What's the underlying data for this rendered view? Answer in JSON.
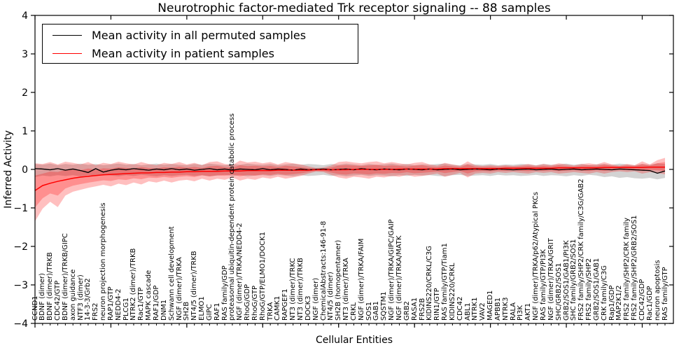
{
  "title": "Neurotrophic factor-mediated Trk receptor signaling -- 88 samples",
  "axes": {
    "xlabel": "Cellular Entities",
    "ylabel": "Inferred Activity",
    "ytick_labels": [
      "4",
      "3",
      "2",
      "1",
      "0",
      "−1",
      "−2",
      "−3",
      "−4"
    ],
    "ytick_values": [
      4,
      3,
      2,
      1,
      0,
      -1,
      -2,
      -3,
      -4
    ],
    "ylim": [
      -4,
      4
    ]
  },
  "legend": [
    {
      "label": "Mean activity in all permuted samples",
      "color": "#000000"
    },
    {
      "label": "Mean activity in patient samples",
      "color": "#ff0000"
    }
  ],
  "colors": {
    "permuted_line": "#000000",
    "patient_line": "#ff0000",
    "permuted_band": "#c8c8c8",
    "patient_band": "#ff0000",
    "frame": "#000000"
  },
  "chart_data": {
    "type": "line",
    "title": "Neurotrophic factor-mediated Trk receptor signaling -- 88 samples",
    "xlabel": "Cellular Entities",
    "ylabel": "Inferred Activity",
    "ylim": [
      -4,
      4
    ],
    "legend_position": "upper left",
    "grid": false,
    "categories": [
      "CCND1",
      "BDNF (dimer)",
      "BDNF (dimer)/TRKB",
      "CDC42/GTP",
      "BDNF (dimer)/TRKB/GIPC",
      "axon guidance",
      "NTF3 (dimer)",
      "14-3-3/Grb2",
      "FRS2",
      "neuron projection morphogenesis",
      "RAP1/GTP",
      "NEDD4-2",
      "PLCG1",
      "NTRK2 (dimer)/TRKB",
      "Rac1/GTP",
      "MAPK cascade",
      "RAF1/GDP",
      "DNM1",
      "Schwann cell development",
      "NGF (dimer)/TRKA",
      "SH2B",
      "NT4/5 (dimer)/TRKB",
      "ELMO1",
      "GIPC",
      "RAF1",
      "RAS family/GDP",
      "proteasomal ubiquitin-dependent protein catabolic process",
      "NGF (dimer)/TRKA/NEDD4-2",
      "RhoG/GDP",
      "RhoG/GTP",
      "RhoG/GTP/ELMO1/DOCK1",
      "TRKA",
      "CAMK1",
      "RAPGEF1",
      "NT3 (dimer)/TRKC",
      "NT3 (dimer)/TRKB",
      "DOCK3",
      "NGF (dimer)",
      "ChemicalAbstracts:146-91-8",
      "NT4/5 (dimer)",
      "SH2B (homopentamer)",
      "NT3 (dimer)/TRKA",
      "CRKL",
      "NGF (dimer)/TRKA/FAIM",
      "SOS1",
      "GAB1",
      "SQSTM1",
      "NGF (dimer)/TRKA/GIPC/GAIP",
      "NGF (dimer)/TRKA/MATK",
      "GRB2",
      "RASA1",
      "FRS2B",
      "KIDINS220/CRKL/C3G",
      "RIN1/GTP",
      "RAS family/GTP/Tiam1",
      "KIDINS220/CRKL",
      "CDC42",
      "ABL1",
      "NTRK1",
      "VAV2",
      "MAGED1",
      "APBB1",
      "NTRK3",
      "RALA",
      "PI3K",
      "AKT1",
      "NGF (dimer)/TRKA/p62/Atypical PKCs",
      "RAS family/GTP/PI3K",
      "NGF (dimer)/TRKA/GRIT",
      "SHC/GRB2/SOS1",
      "GRB2/SOS1/GAB1/PI3K",
      "SHC family/GRB2/SOS1",
      "FRS2 family/SHP2/CRK family/C3G/GAB2",
      "FRS2 family/SHP2",
      "GRB2/SOS1/GAB1",
      "CRK family/C3G",
      "Rap1/GDP",
      "MAP2K1/2",
      "FRS2 family/SHP2/CRK family",
      "FRS2 family/SHP2/GRB2/SOS1",
      "CDC42/GDP",
      "Rac1/GDP",
      "neuron apoptosis",
      "RAS family/GTP"
    ],
    "series": [
      {
        "name": "Mean activity in all permuted samples",
        "color": "#000000",
        "values": [
          0.02,
          0.01,
          -0.01,
          0.02,
          -0.02,
          0.01,
          -0.03,
          -0.08,
          0.02,
          -0.07,
          -0.02,
          0.01,
          -0.01,
          0.02,
          0.0,
          -0.02,
          0.01,
          -0.01,
          0.02,
          -0.01,
          0.01,
          -0.02,
          0.0,
          0.02,
          -0.01,
          0.01,
          -0.02,
          0.01,
          0.0,
          -0.01,
          0.02,
          -0.01,
          0.01,
          0.0,
          -0.02,
          0.01,
          -0.01,
          0.0,
          0.01,
          -0.01,
          0.0,
          0.01,
          -0.01,
          0.02,
          0.0,
          -0.01,
          0.01,
          0.0,
          -0.01,
          0.01,
          0.0,
          -0.01,
          0.01,
          -0.01,
          0.0,
          0.01,
          -0.01,
          0.0,
          0.01,
          0.0,
          -0.01,
          0.01,
          0.0,
          -0.01,
          0.0,
          0.01,
          -0.01,
          0.0,
          0.01,
          -0.01,
          0.0,
          0.01,
          -0.01,
          0.0,
          0.01,
          0.0,
          -0.01,
          0.01,
          0.0,
          -0.01,
          -0.02,
          -0.03,
          -0.1,
          -0.04
        ]
      },
      {
        "name": "Mean activity in patient samples",
        "color": "#ff0000",
        "values": [
          -0.55,
          -0.42,
          -0.36,
          -0.31,
          -0.27,
          -0.23,
          -0.2,
          -0.18,
          -0.16,
          -0.14,
          -0.13,
          -0.12,
          -0.11,
          -0.1,
          -0.09,
          -0.09,
          -0.08,
          -0.08,
          -0.07,
          -0.07,
          -0.06,
          -0.06,
          -0.05,
          -0.05,
          -0.05,
          -0.04,
          -0.04,
          -0.04,
          -0.03,
          -0.03,
          -0.03,
          -0.03,
          -0.02,
          -0.02,
          -0.02,
          -0.02,
          -0.02,
          -0.01,
          -0.01,
          -0.01,
          -0.01,
          -0.01,
          0.0,
          0.0,
          0.0,
          0.0,
          0.0,
          0.0,
          0.01,
          0.01,
          0.01,
          0.01,
          0.01,
          0.01,
          0.02,
          0.02,
          0.02,
          0.02,
          0.02,
          0.02,
          0.02,
          0.02,
          0.03,
          0.03,
          0.03,
          0.03,
          0.03,
          0.03,
          0.03,
          0.04,
          0.04,
          0.04,
          0.04,
          0.04,
          0.04,
          0.05,
          0.05,
          0.05,
          0.05,
          0.05,
          0.05,
          0.06,
          0.06,
          0.06
        ]
      }
    ],
    "bands": [
      {
        "name": "permuted samples range",
        "color": "#c8c8c8",
        "opacity": 0.8,
        "upper": [
          0.14,
          0.12,
          0.15,
          0.11,
          0.14,
          0.12,
          0.15,
          0.12,
          0.14,
          0.11,
          0.13,
          0.15,
          0.12,
          0.14,
          0.11,
          0.13,
          0.15,
          0.12,
          0.14,
          0.12,
          0.11,
          0.14,
          0.12,
          0.15,
          0.13,
          0.11,
          0.14,
          0.12,
          0.15,
          0.13,
          0.12,
          0.14,
          0.11,
          0.13,
          0.15,
          0.12,
          0.14,
          0.13,
          0.11,
          0.14,
          0.12,
          0.15,
          0.13,
          0.11,
          0.14,
          0.12,
          0.13,
          0.15,
          0.12,
          0.14,
          0.11,
          0.13,
          0.12,
          0.14,
          0.15,
          0.12,
          0.11,
          0.14,
          0.13,
          0.12,
          0.14,
          0.11,
          0.13,
          0.12,
          0.14,
          0.13,
          0.11,
          0.14,
          0.12,
          0.13,
          0.15,
          0.12,
          0.14,
          0.11,
          0.13,
          0.14,
          0.12,
          0.15,
          0.13,
          0.11,
          0.14,
          0.12,
          0.16,
          0.14
        ],
        "lower": [
          -0.2,
          -0.16,
          -0.18,
          -0.15,
          -0.17,
          -0.15,
          -0.18,
          -0.15,
          -0.17,
          -0.14,
          -0.16,
          -0.18,
          -0.15,
          -0.17,
          -0.14,
          -0.16,
          -0.18,
          -0.15,
          -0.17,
          -0.15,
          -0.14,
          -0.17,
          -0.15,
          -0.18,
          -0.16,
          -0.14,
          -0.17,
          -0.15,
          -0.18,
          -0.16,
          -0.15,
          -0.17,
          -0.14,
          -0.16,
          -0.18,
          -0.15,
          -0.17,
          -0.16,
          -0.14,
          -0.17,
          -0.15,
          -0.18,
          -0.16,
          -0.14,
          -0.17,
          -0.15,
          -0.16,
          -0.18,
          -0.15,
          -0.17,
          -0.14,
          -0.16,
          -0.15,
          -0.17,
          -0.18,
          -0.15,
          -0.14,
          -0.17,
          -0.16,
          -0.15,
          -0.17,
          -0.14,
          -0.16,
          -0.15,
          -0.17,
          -0.16,
          -0.14,
          -0.17,
          -0.15,
          -0.16,
          -0.18,
          -0.15,
          -0.17,
          -0.14,
          -0.16,
          -0.2,
          -0.18,
          -0.22,
          -0.2,
          -0.23,
          -0.24,
          -0.22,
          -0.26,
          -0.22
        ]
      },
      {
        "name": "patient samples range",
        "color": "#ff0000",
        "opacity": 0.25,
        "upper": [
          0.16,
          0.14,
          0.19,
          0.13,
          0.2,
          0.17,
          0.13,
          0.19,
          0.11,
          0.17,
          0.14,
          0.2,
          0.16,
          0.13,
          0.19,
          0.14,
          0.11,
          0.17,
          0.14,
          0.19,
          0.13,
          0.17,
          0.11,
          0.19,
          0.21,
          0.14,
          0.11,
          0.23,
          0.18,
          0.2,
          0.16,
          0.19,
          0.13,
          0.19,
          0.16,
          0.13,
          0.08,
          0.04,
          0.05,
          0.1,
          0.19,
          0.21,
          0.18,
          0.16,
          0.19,
          0.21,
          0.16,
          0.19,
          0.16,
          0.13,
          0.17,
          0.19,
          0.13,
          0.1,
          0.17,
          0.13,
          0.09,
          0.21,
          0.11,
          0.09,
          0.11,
          0.09,
          0.11,
          0.09,
          0.11,
          0.14,
          0.1,
          0.14,
          0.11,
          0.16,
          0.13,
          0.1,
          0.14,
          0.16,
          0.13,
          0.19,
          0.13,
          0.1,
          0.14,
          0.11,
          0.21,
          0.13,
          0.24,
          0.3
        ],
        "lower": [
          -1.35,
          -1.02,
          -0.84,
          -0.98,
          -0.68,
          -0.58,
          -0.53,
          -0.48,
          -0.44,
          -0.4,
          -0.44,
          -0.37,
          -0.41,
          -0.34,
          -0.39,
          -0.31,
          -0.34,
          -0.29,
          -0.34,
          -0.29,
          -0.27,
          -0.31,
          -0.24,
          -0.29,
          -0.24,
          -0.27,
          -0.21,
          -0.29,
          -0.24,
          -0.27,
          -0.21,
          -0.24,
          -0.19,
          -0.24,
          -0.21,
          -0.17,
          -0.11,
          -0.06,
          -0.07,
          -0.14,
          -0.21,
          -0.24,
          -0.19,
          -0.21,
          -0.24,
          -0.19,
          -0.21,
          -0.17,
          -0.19,
          -0.14,
          -0.19,
          -0.17,
          -0.14,
          -0.11,
          -0.19,
          -0.14,
          -0.09,
          -0.21,
          -0.11,
          -0.09,
          -0.11,
          -0.07,
          -0.09,
          -0.07,
          -0.09,
          -0.11,
          -0.07,
          -0.09,
          -0.07,
          -0.11,
          -0.09,
          -0.07,
          -0.09,
          -0.11,
          -0.07,
          -0.11,
          -0.07,
          -0.05,
          -0.07,
          -0.05,
          -0.11,
          -0.07,
          -0.09,
          -0.13
        ]
      }
    ],
    "inner_band_scale": 0.55
  }
}
